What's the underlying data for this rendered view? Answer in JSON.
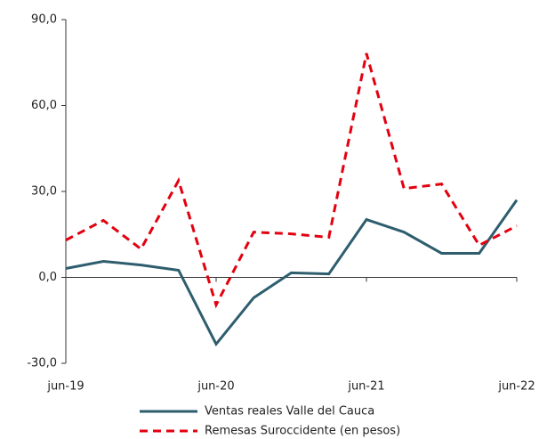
{
  "chart_data": {
    "type": "line",
    "categories": [
      "jun-19",
      null,
      null,
      null,
      "jun-20",
      null,
      null,
      null,
      "jun-21",
      null,
      null,
      null,
      "jun-22"
    ],
    "series": [
      {
        "name": "Ventas reales Valle del Cauca",
        "color": "#2e5e6e",
        "dash": false,
        "values": [
          3.1,
          5.6,
          4.3,
          2.5,
          -23.3,
          -7.1,
          1.6,
          1.2,
          20.2,
          15.8,
          8.4,
          8.4,
          27.0
        ]
      },
      {
        "name": "Remesas Suroccidente (en pesos)",
        "color": "#e3000f",
        "dash": true,
        "values": [
          13.0,
          19.9,
          9.9,
          33.8,
          -9.6,
          15.8,
          15.2,
          14.0,
          78.2,
          31.0,
          32.6,
          11.2,
          18.0
        ]
      }
    ],
    "ylim": [
      -30,
      90
    ],
    "yticks": [
      {
        "value": -30,
        "label": "-30,0"
      },
      {
        "value": 0,
        "label": "0,0"
      },
      {
        "value": 30,
        "label": "30,0"
      },
      {
        "value": 60,
        "label": "60,0"
      },
      {
        "value": 90,
        "label": "90,0"
      }
    ],
    "grid": false
  }
}
